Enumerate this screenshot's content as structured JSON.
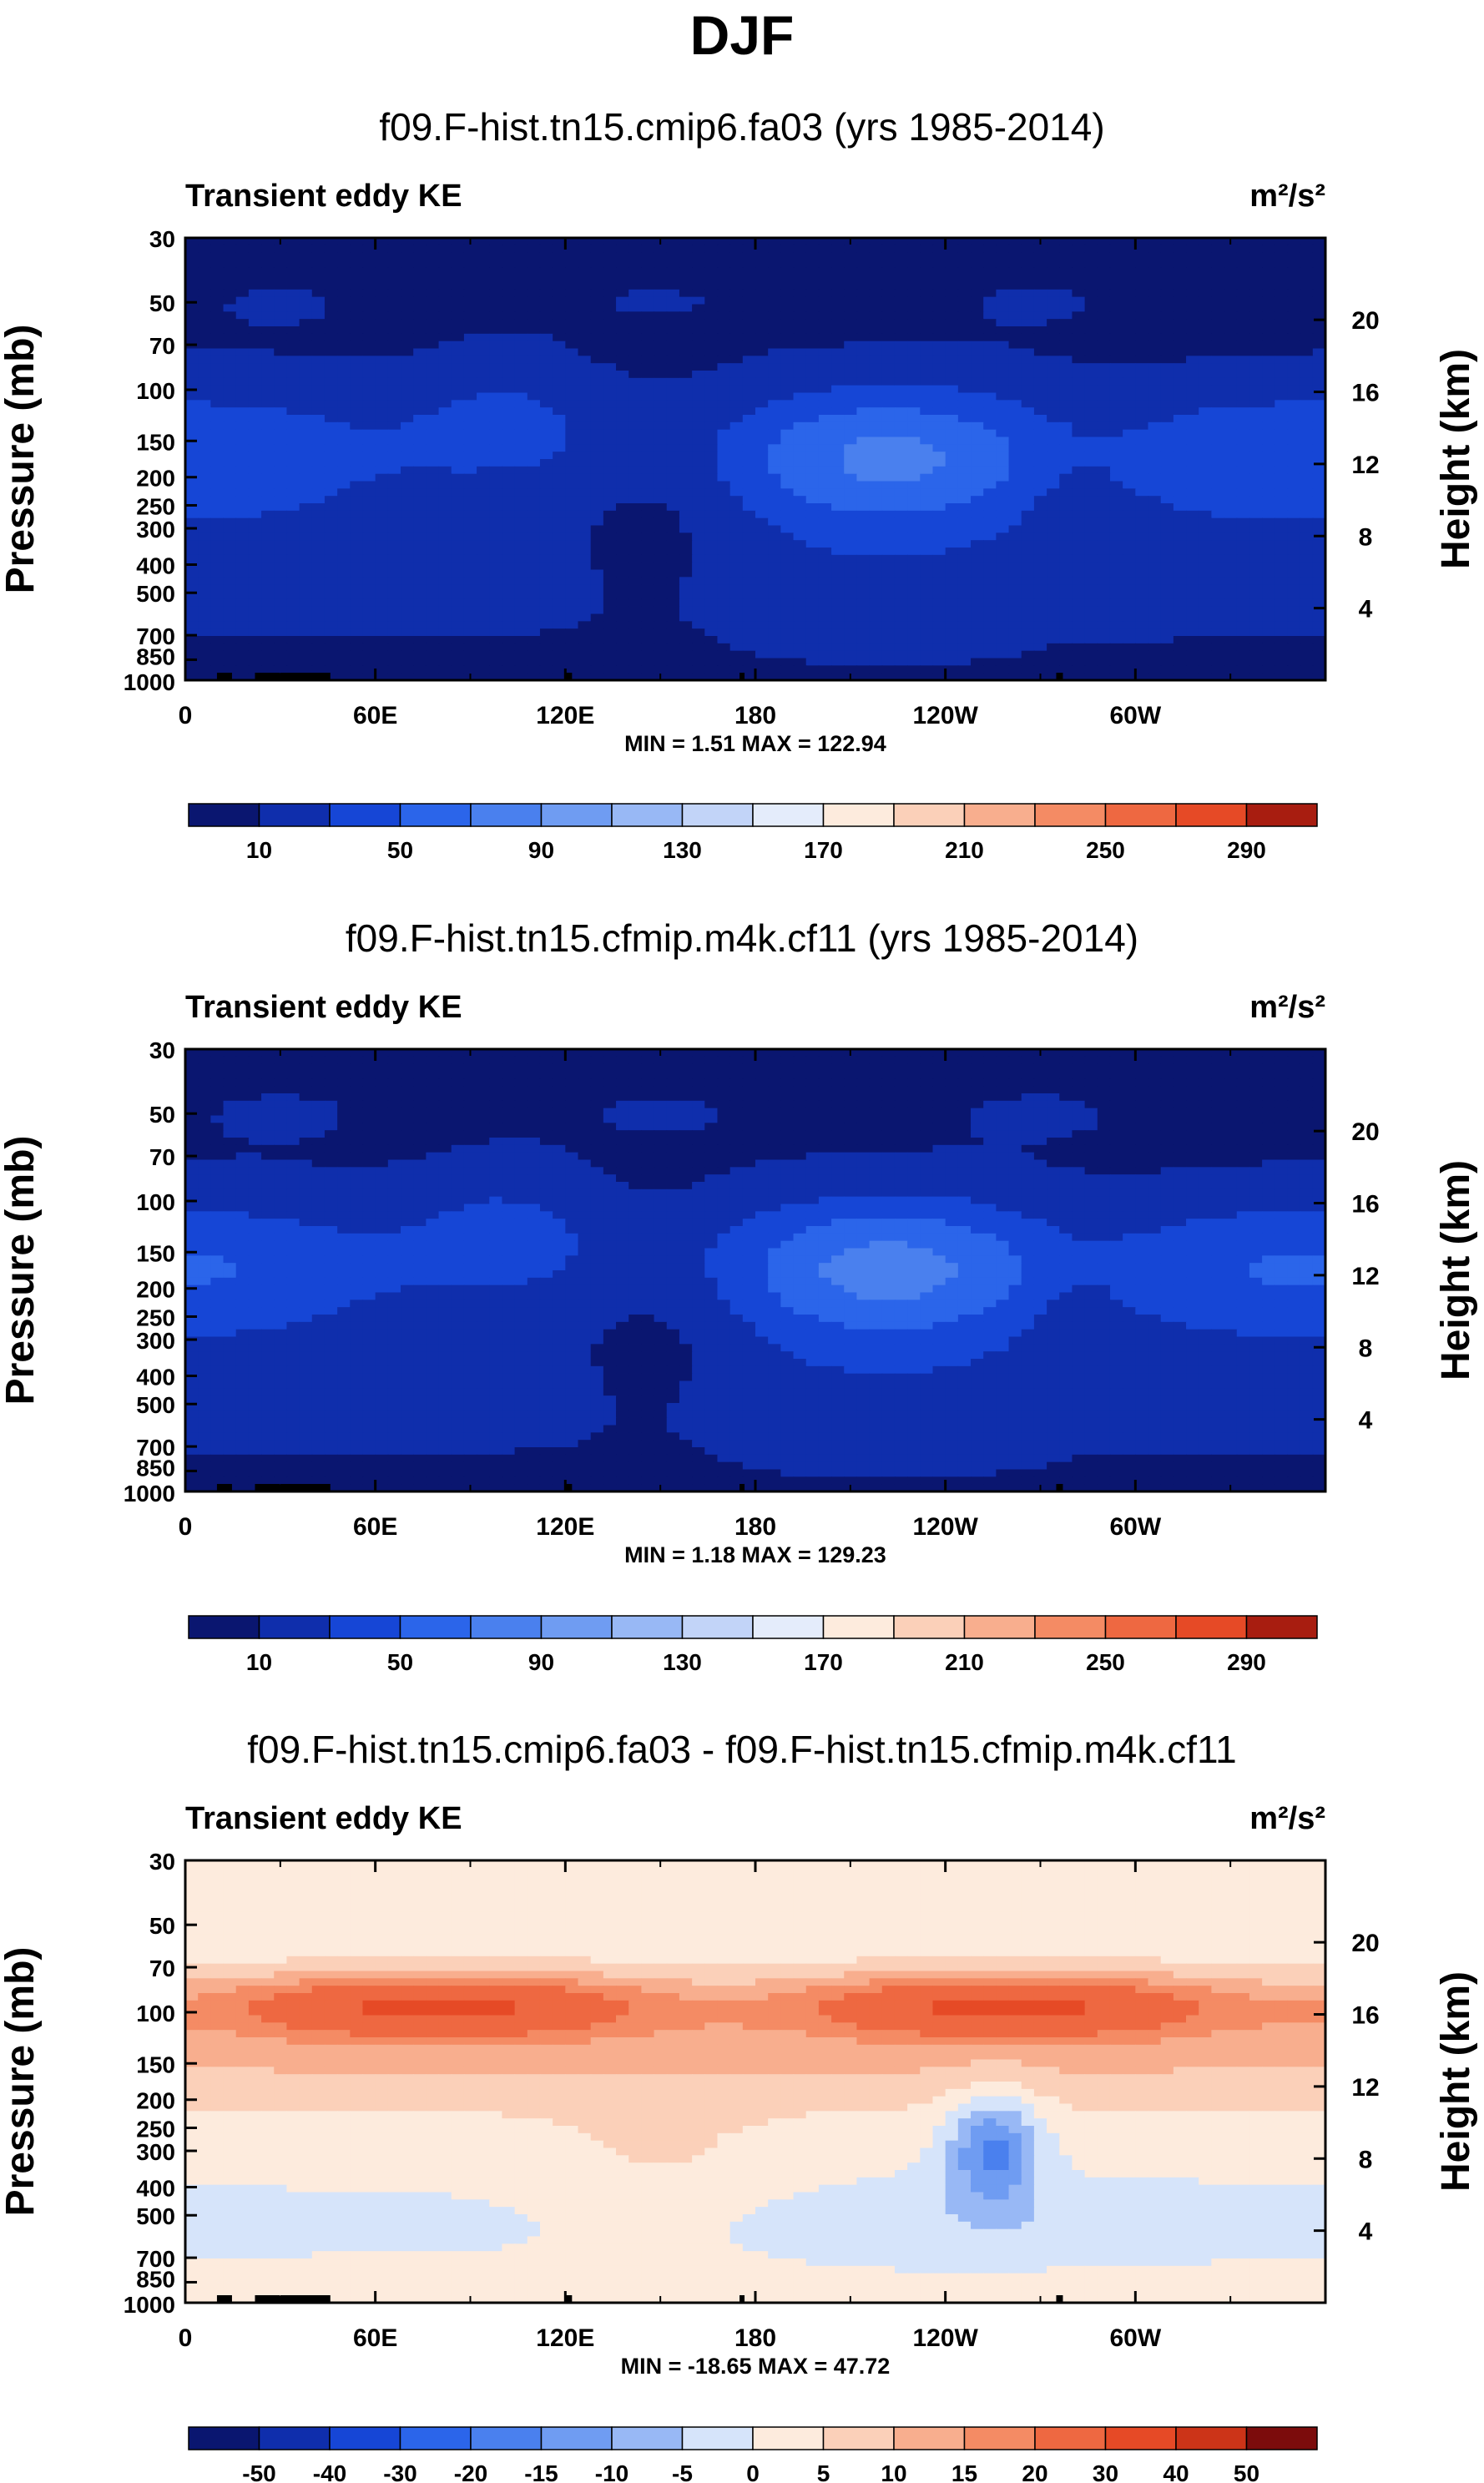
{
  "page_title": "DJF",
  "colors": {
    "seq": [
      "#0a1670",
      "#0f2eac",
      "#1646d6",
      "#2b65ea",
      "#4a80ee",
      "#6f9cf2",
      "#98b8f5",
      "#c2d4f8",
      "#e4ecfb",
      "#fdebdd",
      "#fbd0b9",
      "#f8ae8e",
      "#f48b64",
      "#ee6841",
      "#e64a26",
      "#cc3418",
      "#a81d10",
      "#7c0c0c"
    ],
    "div": [
      "#0a1670",
      "#0f2eac",
      "#1646d6",
      "#2b65ea",
      "#4a80ee",
      "#6f9cf2",
      "#98b8f5",
      "#c2d4f8",
      "#e4ecfb",
      "#fdebdd",
      "#fbd0b9",
      "#f8ae8e",
      "#f48b64",
      "#ee6841",
      "#e64a26",
      "#cc3418",
      "#a81d10",
      "#7c0c0c"
    ]
  },
  "chart_data": [
    {
      "type": "heatmap",
      "title": "f09.F-hist.tn15.cmip6.fa03 (yrs 1985-2014)",
      "left_label": "Transient eddy KE",
      "units": "m²/s²",
      "ylabel": "Pressure (mb)",
      "y2label": "Height (km)",
      "xticks": [
        "0",
        "60E",
        "120E",
        "180",
        "120W",
        "60W"
      ],
      "xtick_values": [
        0,
        60,
        120,
        180,
        240,
        300
      ],
      "xlim": [
        0,
        360
      ],
      "pressure_ticks": [
        "30",
        "50",
        "70",
        "100",
        "150",
        "200",
        "250",
        "300",
        "400",
        "500",
        "700",
        "850",
        "1000"
      ],
      "pressure_values": [
        30,
        50,
        70,
        100,
        150,
        200,
        250,
        300,
        400,
        500,
        700,
        850,
        1000
      ],
      "height_ticks": [
        "4",
        "8",
        "12",
        "16",
        "20"
      ],
      "height_values": [
        4,
        8,
        12,
        16,
        20
      ],
      "stats": "MIN =   1.51  MAX = 122.94",
      "min": 1.51,
      "max": 122.94,
      "field": "sequential",
      "colorbar_labels": [
        "10",
        "50",
        "90",
        "130",
        "170",
        "210",
        "250",
        "290"
      ],
      "colorbar_bins": 16
    },
    {
      "type": "heatmap",
      "title": "f09.F-hist.tn15.cfmip.m4k.cf11 (yrs 1985-2014)",
      "left_label": "Transient eddy KE",
      "units": "m²/s²",
      "ylabel": "Pressure (mb)",
      "y2label": "Height (km)",
      "xticks": [
        "0",
        "60E",
        "120E",
        "180",
        "120W",
        "60W"
      ],
      "xtick_values": [
        0,
        60,
        120,
        180,
        240,
        300
      ],
      "xlim": [
        0,
        360
      ],
      "pressure_ticks": [
        "30",
        "50",
        "70",
        "100",
        "150",
        "200",
        "250",
        "300",
        "400",
        "500",
        "700",
        "850",
        "1000"
      ],
      "pressure_values": [
        30,
        50,
        70,
        100,
        150,
        200,
        250,
        300,
        400,
        500,
        700,
        850,
        1000
      ],
      "height_ticks": [
        "4",
        "8",
        "12",
        "16",
        "20"
      ],
      "height_values": [
        4,
        8,
        12,
        16,
        20
      ],
      "stats": "MIN =   1.18  MAX = 129.23",
      "min": 1.18,
      "max": 129.23,
      "field": "sequential",
      "colorbar_labels": [
        "10",
        "50",
        "90",
        "130",
        "170",
        "210",
        "250",
        "290"
      ],
      "colorbar_bins": 16
    },
    {
      "type": "heatmap",
      "title": "f09.F-hist.tn15.cmip6.fa03 - f09.F-hist.tn15.cfmip.m4k.cf11",
      "left_label": "Transient eddy KE",
      "units": "m²/s²",
      "ylabel": "Pressure (mb)",
      "y2label": "Height (km)",
      "xticks": [
        "0",
        "60E",
        "120E",
        "180",
        "120W",
        "60W"
      ],
      "xtick_values": [
        0,
        60,
        120,
        180,
        240,
        300
      ],
      "xlim": [
        0,
        360
      ],
      "pressure_ticks": [
        "30",
        "50",
        "70",
        "100",
        "150",
        "200",
        "250",
        "300",
        "400",
        "500",
        "700",
        "850",
        "1000"
      ],
      "pressure_values": [
        30,
        50,
        70,
        100,
        150,
        200,
        250,
        300,
        400,
        500,
        700,
        850,
        1000
      ],
      "height_ticks": [
        "4",
        "8",
        "12",
        "16",
        "20"
      ],
      "height_values": [
        4,
        8,
        12,
        16,
        20
      ],
      "stats": "MIN = -18.65  MAX = 47.72",
      "min": -18.65,
      "max": 47.72,
      "field": "difference",
      "colorbar_labels": [
        "-50",
        "-40",
        "-30",
        "-20",
        "-15",
        "-10",
        "-5",
        "0",
        "5",
        "10",
        "15",
        "20",
        "30",
        "40",
        "50"
      ],
      "colorbar_bins": 16
    }
  ]
}
